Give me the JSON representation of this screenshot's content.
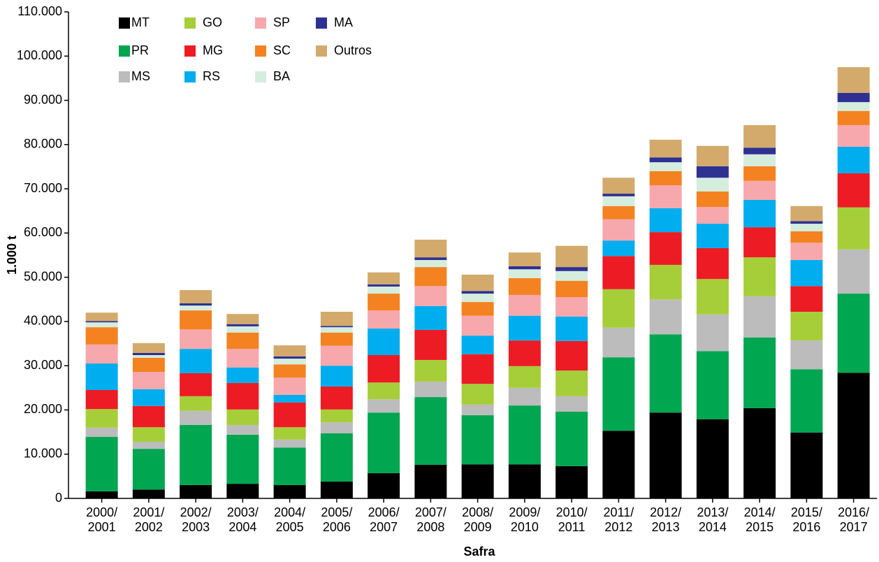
{
  "chart_data": {
    "type": "stacked-bar",
    "x_label": "Safra",
    "y_label": "1.000 t",
    "categories": [
      "2000/\n2001",
      "2001/\n2002",
      "2002/\n2003",
      "2003/\n2004",
      "2004/\n2005",
      "2005/\n2006",
      "2006/\n2007",
      "2007/\n2008",
      "2008/\n2009",
      "2009/\n2010",
      "2010/\n2011",
      "2011/\n2012",
      "2012/\n2013",
      "2013/\n2014",
      "2014/\n2015",
      "2015/\n2016",
      "2016/\n2017"
    ],
    "ylim": [
      0,
      110000
    ],
    "yticks": [
      0,
      {
        "value": 10000,
        "label": "10.000"
      },
      {
        "value": 20000,
        "label": "20.000"
      },
      {
        "value": 30000,
        "label": "30.000"
      },
      {
        "value": 40000,
        "label": "40.000"
      },
      {
        "value": 50000,
        "label": "50.000"
      },
      {
        "value": 60000,
        "label": "60.000"
      },
      {
        "value": 70000,
        "label": "70.000"
      },
      {
        "value": 80000,
        "label": "80.000"
      },
      {
        "value": 90000,
        "label": "90.000"
      },
      {
        "value": 100000,
        "label": "100.000"
      },
      {
        "value": 110000,
        "label": "110.000"
      }
    ],
    "grid": false,
    "legend": "top-left",
    "series": [
      {
        "name": "MT",
        "color": "#000000",
        "values": [
          1600,
          2000,
          3000,
          3300,
          3000,
          3800,
          5700,
          7600,
          7700,
          7700,
          7300,
          15300,
          19400,
          17900,
          20400,
          14900,
          28400
        ]
      },
      {
        "name": "PR",
        "color": "#00a650",
        "values": [
          12300,
          9200,
          13600,
          11100,
          8500,
          10900,
          13700,
          15300,
          11100,
          13300,
          12300,
          16600,
          17700,
          15400,
          16000,
          14300,
          17900
        ]
      },
      {
        "name": "MS",
        "color": "#bcbcbc",
        "values": [
          2100,
          1600,
          3200,
          2200,
          1800,
          2500,
          3000,
          3500,
          2400,
          4000,
          3500,
          6700,
          7900,
          8300,
          9300,
          6500,
          10000
        ]
      },
      {
        "name": "GO",
        "color": "#a6ce39",
        "values": [
          4200,
          3300,
          3300,
          3500,
          2800,
          2900,
          3800,
          4900,
          4700,
          4900,
          5800,
          8700,
          7800,
          8000,
          8800,
          6500,
          9500
        ]
      },
      {
        "name": "MG",
        "color": "#ed1c24",
        "values": [
          4300,
          4800,
          5200,
          6000,
          5600,
          5200,
          6200,
          6800,
          6700,
          5800,
          6700,
          7500,
          7400,
          7000,
          6800,
          5800,
          7700
        ]
      },
      {
        "name": "RS",
        "color": "#00aeef",
        "values": [
          6000,
          3800,
          5500,
          3500,
          1700,
          4700,
          6000,
          5400,
          4200,
          5600,
          5500,
          3500,
          5400,
          5500,
          6200,
          5900,
          6000
        ]
      },
      {
        "name": "SP",
        "color": "#f7a8ad",
        "values": [
          4300,
          3900,
          4400,
          4200,
          3900,
          4500,
          4100,
          4500,
          4500,
          4700,
          4400,
          4800,
          5200,
          3800,
          4300,
          3900,
          4900
        ]
      },
      {
        "name": "SC",
        "color": "#f58220",
        "values": [
          3900,
          3200,
          4300,
          3700,
          3000,
          3000,
          3800,
          4300,
          3100,
          3800,
          3700,
          3000,
          3200,
          3500,
          3300,
          2600,
          3200
        ]
      },
      {
        "name": "BA",
        "color": "#d4eddc",
        "values": [
          1100,
          600,
          1100,
          1400,
          1300,
          1200,
          1600,
          1600,
          1900,
          2000,
          2200,
          2200,
          2000,
          3100,
          2700,
          1700,
          2000
        ]
      },
      {
        "name": "MA",
        "color": "#2e3192",
        "values": [
          300,
          500,
          500,
          500,
          500,
          300,
          500,
          600,
          600,
          700,
          900,
          600,
          1100,
          2600,
          1500,
          600,
          2100
        ]
      },
      {
        "name": "Outros",
        "color": "#d3aa6b",
        "values": [
          1900,
          2200,
          3000,
          2300,
          2500,
          3200,
          2700,
          4000,
          3700,
          3100,
          4800,
          3600,
          4000,
          4600,
          5100,
          3400,
          5800
        ]
      }
    ]
  }
}
